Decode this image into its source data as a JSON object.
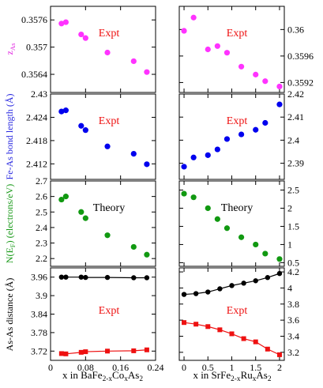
{
  "figure": {
    "x_axis_labels": {
      "left": {
        "text": "x in BaFe",
        "sub1": "2-x",
        "mid": "Co",
        "sub2": "x",
        "end": "As",
        "sub3": "2"
      },
      "right": {
        "text": "x in SrFe",
        "sub1": "2-x",
        "mid": "Ru",
        "sub2": "x",
        "end": "As",
        "sub3": "2"
      }
    },
    "y_axis_labels": {
      "row0": {
        "main": "z",
        "sub": "As",
        "color": "#e020e0"
      },
      "row1": {
        "main": "Fe-As bond length (Å)",
        "color": "#2a2ae0"
      },
      "row2": {
        "main": "N(E",
        "sub": "F",
        "end": ") (electrons/eV)",
        "color": "#1a9a1a"
      },
      "row3": {
        "main": "As-As distance (Å)",
        "color": "#000000"
      }
    }
  },
  "chart_data": [
    {
      "type": "scatter",
      "row": 0,
      "col": 0,
      "annotation": "Expt",
      "color": "#ff33ff",
      "xlim": [
        0,
        0.24
      ],
      "ylim": [
        0.356,
        0.3579
      ],
      "xticks": [],
      "yticks": [
        "0.3564",
        "0.357",
        "0.3576"
      ],
      "series": [
        {
          "x": [
            0.025,
            0.035,
            0.07,
            0.08,
            0.13,
            0.19,
            0.22
          ],
          "y": [
            0.35752,
            0.35755,
            0.35728,
            0.3572,
            0.35688,
            0.35669,
            0.35645
          ]
        }
      ]
    },
    {
      "type": "scatter",
      "row": 0,
      "col": 1,
      "annotation": "Expt",
      "color": "#ff33ff",
      "xlim": [
        -0.1,
        2.1
      ],
      "ylim": [
        0.35905,
        0.36035
      ],
      "xticks": [],
      "yticks": [
        "0.3592",
        "0.3596",
        "0.36"
      ],
      "series": [
        {
          "x": [
            0.0,
            0.2,
            0.5,
            0.7,
            0.9,
            1.2,
            1.5,
            1.7,
            2.0
          ],
          "y": [
            0.35998,
            0.36018,
            0.3597,
            0.35975,
            0.35965,
            0.35944,
            0.35932,
            0.35922,
            0.35914
          ]
        }
      ]
    },
    {
      "type": "scatter",
      "row": 1,
      "col": 0,
      "annotation": "Expt",
      "color": "#0000ee",
      "xlim": [
        0,
        0.24
      ],
      "ylim": [
        2.408,
        2.43
      ],
      "xticks": [],
      "yticks": [
        "2.412",
        "2.418",
        "2.424",
        "2.43"
      ],
      "series": [
        {
          "x": [
            0.025,
            0.035,
            0.07,
            0.08,
            0.13,
            0.19,
            0.22
          ],
          "y": [
            2.4255,
            2.4258,
            2.4218,
            2.4207,
            2.4165,
            2.4146,
            2.4119
          ]
        }
      ]
    },
    {
      "type": "scatter",
      "row": 1,
      "col": 1,
      "annotation": "Expt",
      "color": "#0000ee",
      "xlim": [
        -0.1,
        2.1
      ],
      "ylim": [
        2.383,
        2.42
      ],
      "xticks": [],
      "yticks": [
        "2.39",
        "2.4",
        "2.41",
        "2.42"
      ],
      "series": [
        {
          "x": [
            0.0,
            0.2,
            0.5,
            0.7,
            0.9,
            1.2,
            1.5,
            1.7,
            2.0
          ],
          "y": [
            2.3885,
            2.3925,
            2.3935,
            2.396,
            2.4005,
            2.4025,
            2.4045,
            2.4075,
            2.4155
          ]
        }
      ]
    },
    {
      "type": "scatter",
      "row": 2,
      "col": 0,
      "annotation": "Theory",
      "color": "#119911",
      "xlim": [
        0,
        0.24
      ],
      "ylim": [
        2.15,
        2.7
      ],
      "xticks": [],
      "yticks": [
        "2.2",
        "2.3",
        "2.4",
        "2.5",
        "2.6",
        "2.7"
      ],
      "series": [
        {
          "x": [
            0.025,
            0.035,
            0.07,
            0.08,
            0.13,
            0.19,
            0.22
          ],
          "y": [
            2.58,
            2.6,
            2.5,
            2.46,
            2.35,
            2.275,
            2.225
          ]
        }
      ]
    },
    {
      "type": "scatter",
      "row": 2,
      "col": 1,
      "annotation": "Theory",
      "color": "#119911",
      "xlim": [
        -0.1,
        2.1
      ],
      "ylim": [
        0.4,
        2.75
      ],
      "xticks": [],
      "yticks": [
        "0.5",
        "1",
        "1.5",
        "2",
        "2.5"
      ],
      "series": [
        {
          "x": [
            0.0,
            0.2,
            0.5,
            0.7,
            0.9,
            1.2,
            1.5,
            1.7,
            2.0
          ],
          "y": [
            2.4,
            2.3,
            2.0,
            1.7,
            1.45,
            1.2,
            1.0,
            0.75,
            0.6
          ]
        }
      ]
    },
    {
      "type": "line",
      "row": 3,
      "col": 0,
      "annotation": "Expt",
      "xlim": [
        0,
        0.24
      ],
      "ylim": [
        3.69,
        3.99
      ],
      "xticks": [
        "0",
        "0.08",
        "0.16",
        "0.24"
      ],
      "yticks": [
        "3.72",
        "3.78",
        "3.84",
        "3.9",
        "3.96"
      ],
      "series": [
        {
          "marker": "circle",
          "color": "#000000",
          "x": [
            0.025,
            0.035,
            0.07,
            0.08,
            0.13,
            0.19,
            0.22
          ],
          "y": [
            3.96,
            3.96,
            3.96,
            3.959,
            3.959,
            3.958,
            3.958
          ]
        },
        {
          "marker": "square",
          "color": "#ee1111",
          "x": [
            0.025,
            0.035,
            0.07,
            0.08,
            0.13,
            0.19,
            0.22
          ],
          "y": [
            3.712,
            3.711,
            3.716,
            3.718,
            3.72,
            3.721,
            3.724
          ]
        }
      ]
    },
    {
      "type": "line",
      "row": 3,
      "col": 1,
      "annotation": "Expt",
      "xlim": [
        -0.1,
        2.1
      ],
      "ylim": [
        3.1,
        4.25
      ],
      "xticks": [
        "0",
        "0.5",
        "1",
        "1.5",
        "2"
      ],
      "yticks": [
        "3.2",
        "3.4",
        "3.6",
        "3.8",
        "4",
        "4.2"
      ],
      "series": [
        {
          "marker": "circle",
          "color": "#000000",
          "x": [
            0.0,
            0.25,
            0.5,
            0.75,
            1.0,
            1.25,
            1.5,
            1.75,
            2.0
          ],
          "y": [
            3.92,
            3.93,
            3.95,
            3.99,
            4.03,
            4.06,
            4.09,
            4.13,
            4.18
          ]
        },
        {
          "marker": "square",
          "color": "#ee1111",
          "x": [
            0.0,
            0.25,
            0.5,
            0.75,
            1.0,
            1.25,
            1.5,
            1.75,
            2.0
          ],
          "y": [
            3.57,
            3.55,
            3.52,
            3.48,
            3.43,
            3.37,
            3.33,
            3.24,
            3.17
          ]
        }
      ]
    }
  ]
}
